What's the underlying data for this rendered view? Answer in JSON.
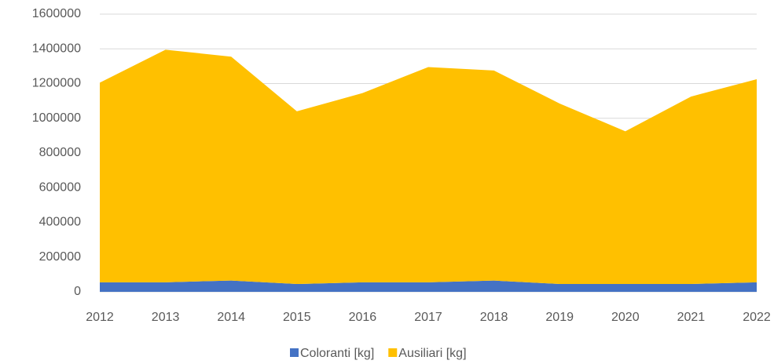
{
  "chart_data": {
    "type": "stacked_area",
    "categories": [
      "2012",
      "2013",
      "2014",
      "2015",
      "2016",
      "2017",
      "2018",
      "2019",
      "2020",
      "2021",
      "2022"
    ],
    "series": [
      {
        "name": "Coloranti [kg]",
        "color": "#4472c4",
        "values": [
          55000,
          55000,
          65000,
          45000,
          55000,
          55000,
          65000,
          45000,
          45000,
          45000,
          55000
        ]
      },
      {
        "name": "Ausiliari [kg]",
        "color": "#ffc000",
        "values": [
          1150000,
          1340000,
          1290000,
          995000,
          1090000,
          1240000,
          1210000,
          1040000,
          880000,
          1080000,
          1170000
        ]
      }
    ],
    "ylim": [
      0,
      1600000
    ],
    "yticks": [
      0,
      200000,
      400000,
      600000,
      800000,
      1000000,
      1200000,
      1400000,
      1600000
    ],
    "grid": true,
    "legend": "bottom"
  }
}
